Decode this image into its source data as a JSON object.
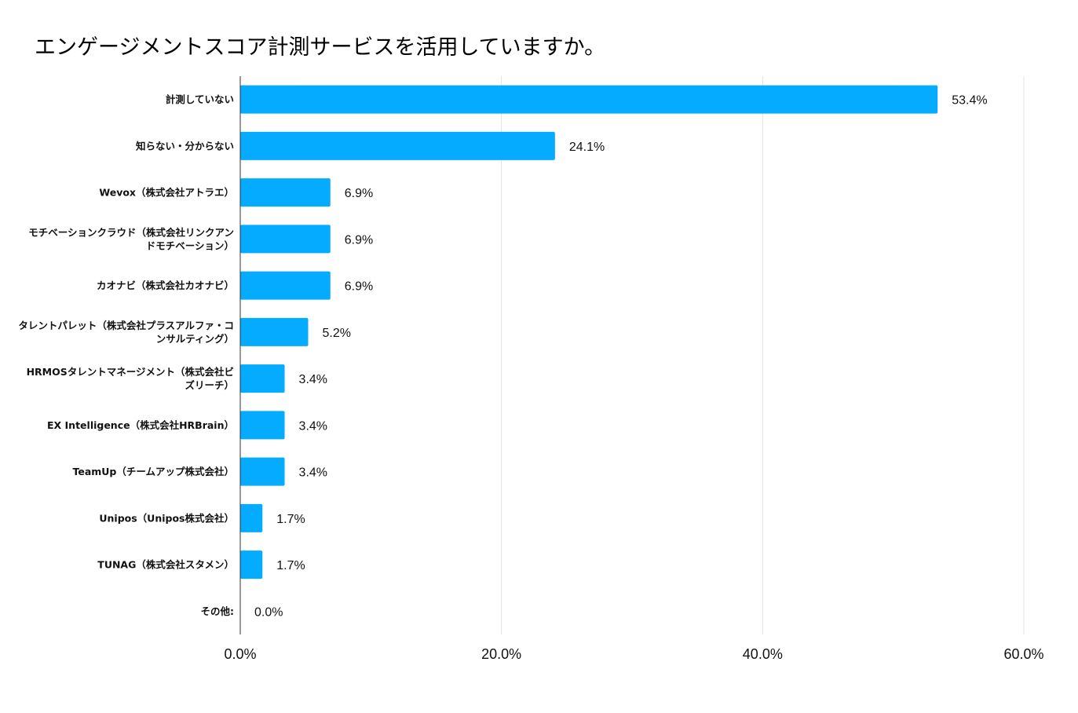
{
  "chart_data": {
    "type": "bar",
    "orientation": "horizontal",
    "title": "エンゲージメントスコア計測サービスを活用していますか。",
    "categories": [
      [
        "計測していない"
      ],
      [
        "知らない・分からない"
      ],
      [
        "Wevox（株式会社アトラエ）"
      ],
      [
        "モチベーションクラウド（株式会社リンクアン",
        "ドモチベーション）"
      ],
      [
        "カオナビ（株式会社カオナビ）"
      ],
      [
        "タレントパレット（株式会社プラスアルファ・コ",
        "ンサルティング）"
      ],
      [
        "HRMOSタレントマネージメント（株式会社ビ",
        "ズリーチ）"
      ],
      [
        "EX Intelligence（株式会社HRBrain）"
      ],
      [
        "TeamUp（チームアップ株式会社）"
      ],
      [
        "Unipos（Unipos株式会社）"
      ],
      [
        "TUNAG（株式会社スタメン）"
      ],
      [
        "その他:"
      ]
    ],
    "values": [
      53.4,
      24.1,
      6.9,
      6.9,
      6.9,
      5.2,
      3.4,
      3.4,
      3.4,
      1.7,
      1.7,
      0.0
    ],
    "value_labels": [
      "53.4%",
      "24.1%",
      "6.9%",
      "6.9%",
      "6.9%",
      "5.2%",
      "3.4%",
      "3.4%",
      "3.4%",
      "1.7%",
      "1.7%",
      "0.0%"
    ],
    "x_ticks": [
      0,
      20,
      40,
      60
    ],
    "x_tick_labels": [
      "0.0%",
      "20.0%",
      "40.0%",
      "60.0%"
    ],
    "xlim": [
      0,
      60
    ],
    "grid": true,
    "bar_color": "#05abff",
    "grid_color": "#e3e3e3",
    "axis_color": "#333333"
  }
}
